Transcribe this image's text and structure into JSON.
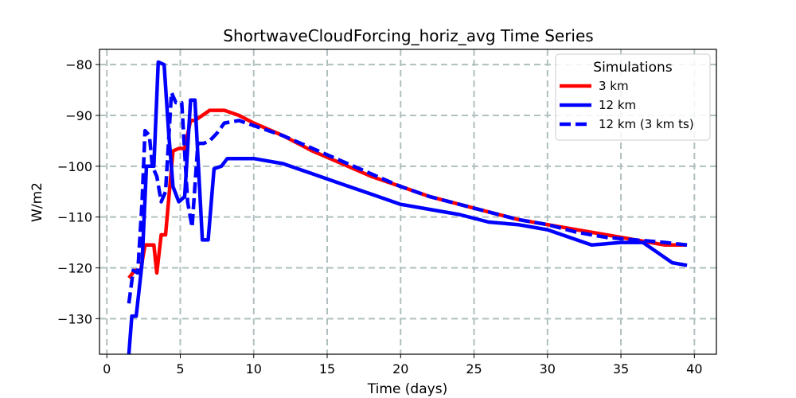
{
  "chart_data": {
    "type": "line",
    "title": "ShortwaveCloudForcing_horiz_avg Time Series",
    "xlabel": "Time (days)",
    "ylabel": "W/m2",
    "xlim": [
      -0.5,
      41.5
    ],
    "ylim": [
      -137,
      -77
    ],
    "xticks": [
      0,
      5,
      10,
      15,
      20,
      25,
      30,
      35,
      40
    ],
    "yticks": [
      -130,
      -120,
      -110,
      -100,
      -90,
      -80
    ],
    "grid": true,
    "legend": {
      "title": "Simulations",
      "position": "top-right"
    },
    "series": [
      {
        "name": "3 km",
        "color": "#ff0000",
        "style": "solid",
        "x": [
          1.5,
          1.9,
          2.3,
          2.6,
          3.2,
          3.4,
          3.7,
          4.0,
          4.5,
          4.9,
          5.3,
          5.7,
          6.0,
          6.5,
          7.0,
          8.0,
          9.0,
          10.0,
          12.0,
          14.0,
          16.0,
          18.0,
          20.0,
          22.0,
          24.0,
          26.0,
          28.0,
          30.0,
          32.0,
          34.0,
          36.0,
          38.0,
          39.5
        ],
        "values": [
          -122,
          -120.5,
          -120.5,
          -115.5,
          -115.5,
          -121,
          -113.5,
          -113.5,
          -97,
          -96.5,
          -96.5,
          -91,
          -91,
          -90,
          -89,
          -89,
          -90,
          -91.5,
          -94,
          -97,
          -99.5,
          -102,
          -104,
          -106,
          -107.5,
          -109,
          -110.5,
          -111.5,
          -112.5,
          -113.5,
          -114.5,
          -115.5,
          -115.5
        ]
      },
      {
        "name": "12 km",
        "color": "#0000ff",
        "style": "solid",
        "x": [
          1.5,
          1.7,
          2.0,
          2.4,
          2.7,
          3.2,
          3.5,
          3.9,
          4.2,
          4.5,
          4.9,
          5.3,
          5.7,
          6.0,
          6.2,
          6.5,
          6.9,
          7.3,
          7.8,
          8.2,
          9.0,
          10.0,
          12.0,
          14.0,
          16.0,
          18.0,
          20.0,
          22.0,
          24.0,
          26.0,
          28.0,
          30.0,
          32.0,
          33.0,
          35.0,
          36.5,
          37.5,
          38.5,
          39.5
        ],
        "values": [
          -137,
          -129.5,
          -129.5,
          -119,
          -100,
          -100,
          -79.5,
          -80,
          -93,
          -104,
          -107,
          -106,
          -87,
          -87,
          -98,
          -114.5,
          -114.5,
          -100.5,
          -100,
          -98.5,
          -98.5,
          -98.5,
          -99.5,
          -101.5,
          -103.5,
          -105.5,
          -107.5,
          -108.5,
          -109.5,
          -111,
          -111.5,
          -112.5,
          -114.5,
          -115.5,
          -115,
          -115,
          -117,
          -119,
          -119.5
        ]
      },
      {
        "name": "12 km (3 km ts)",
        "color": "#0000ff",
        "style": "dashed",
        "x": [
          1.5,
          1.8,
          2.1,
          2.4,
          2.6,
          2.9,
          3.1,
          3.4,
          3.7,
          4.0,
          4.4,
          4.7,
          5.1,
          5.5,
          5.8,
          6.2,
          6.6,
          7.0,
          7.5,
          8.0,
          9.0,
          10.0,
          12.0,
          14.0,
          16.0,
          18.0,
          20.0,
          22.0,
          24.0,
          26.0,
          28.0,
          30.0,
          32.0,
          34.0,
          36.0,
          38.0,
          39.5
        ],
        "values": [
          -127,
          -120.5,
          -121,
          -107,
          -93,
          -94,
          -100,
          -102,
          -107,
          -105,
          -85.5,
          -87.5,
          -87.5,
          -107,
          -112,
          -95.5,
          -95.5,
          -95,
          -93.5,
          -91.5,
          -91,
          -92,
          -94,
          -96.5,
          -99,
          -101.5,
          -104,
          -106,
          -107.5,
          -109,
          -110.5,
          -111.5,
          -113,
          -114,
          -114.5,
          -115,
          -115.5
        ]
      }
    ]
  }
}
